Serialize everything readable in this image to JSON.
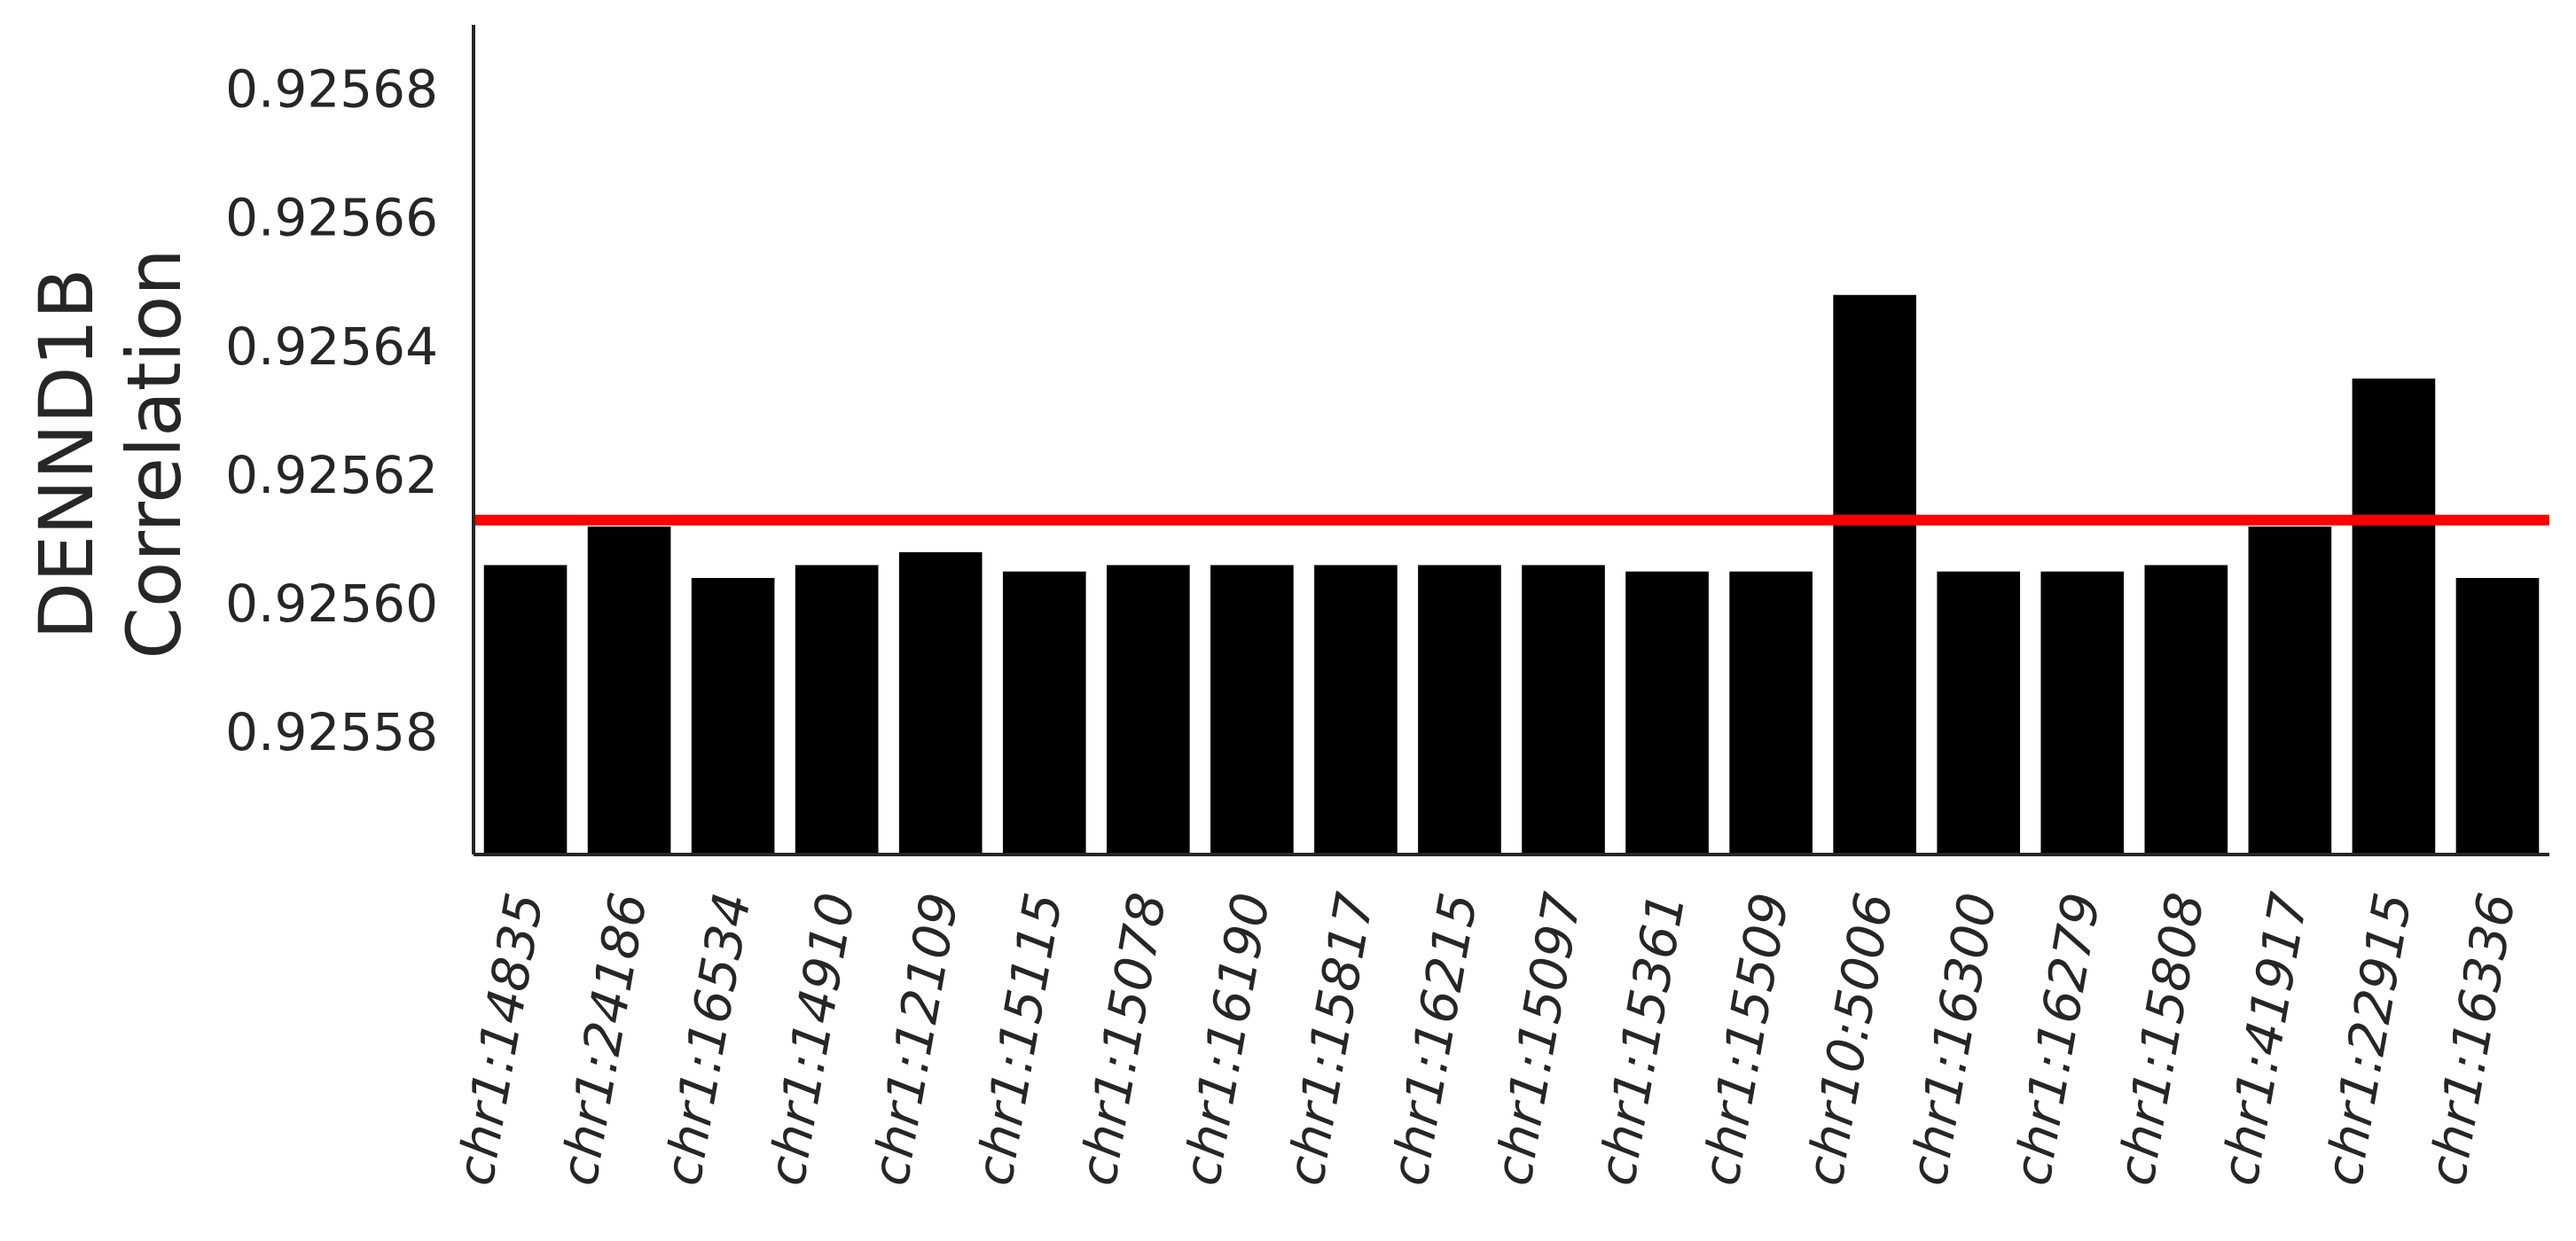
{
  "chart_data": {
    "type": "bar",
    "ylabel_lines": [
      "DENND1B",
      "Correlation"
    ],
    "categories": [
      "chr1:14835",
      "chr1:24186",
      "chr1:16534",
      "chr1:14910",
      "chr1:12109",
      "chr1:15115",
      "chr1:15078",
      "chr1:16190",
      "chr1:15817",
      "chr1:16215",
      "chr1:15097",
      "chr1:15361",
      "chr1:15509",
      "chr10:5006",
      "chr1:16300",
      "chr1:16279",
      "chr1:15808",
      "chr1:41917",
      "chr1:22915",
      "chr1:16336"
    ],
    "values": [
      0.925606,
      0.925612,
      0.925604,
      0.925606,
      0.925608,
      0.925605,
      0.925606,
      0.925606,
      0.925606,
      0.925606,
      0.925606,
      0.925605,
      0.925605,
      0.925648,
      0.925605,
      0.925605,
      0.925606,
      0.925612,
      0.925635,
      0.925604
    ],
    "reference_line": 0.925613,
    "ylim": [
      0.925561,
      0.92569
    ],
    "yticks": [
      0.92558,
      0.9256,
      0.92562,
      0.92564,
      0.92566,
      0.92568
    ],
    "ytick_labels": [
      "0.92558",
      "0.92560",
      "0.92562",
      "0.92564",
      "0.92566",
      "0.92568"
    ],
    "grid": false,
    "colors": {
      "bar": "#000000",
      "reference_line": "#ff0000",
      "axis": "#262626"
    }
  }
}
